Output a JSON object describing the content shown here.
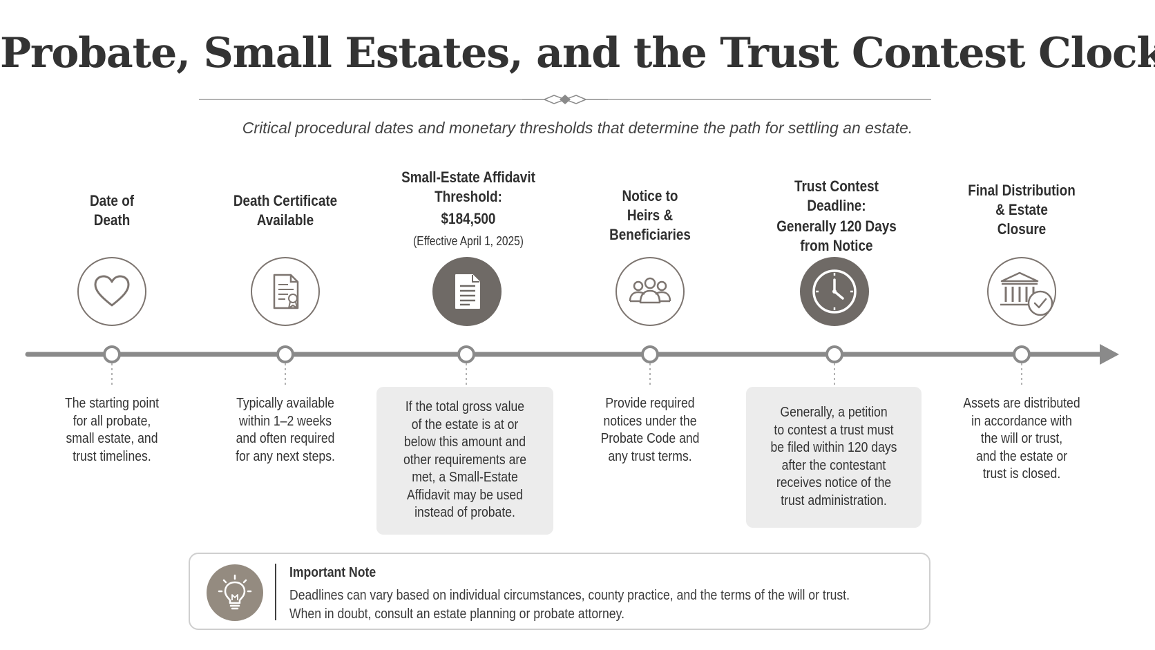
{
  "title": "Probate, Small Estates, and the Trust Contest Clock",
  "subtitle": "Critical procedural dates and monetary thresholds that determine the path for settling an estate.",
  "milestones": [
    {
      "label_lines": [
        "Date of",
        "Death"
      ],
      "label_sub": "",
      "icon": "heart-icon",
      "description_lines": [
        "The starting point",
        "for all probate,",
        "small estate, and",
        "trust timelines."
      ]
    },
    {
      "label_lines": [
        "Death Certificate",
        "Available"
      ],
      "label_sub": "",
      "icon": "certificate-document-icon",
      "description_lines": [
        "Typically available",
        "within 1–2 weeks",
        "and often required",
        "for any next steps."
      ]
    },
    {
      "label_lines": [
        "Small-Estate Affidavit",
        "Threshold:",
        "$184,500"
      ],
      "label_sub": "(Effective April 1, 2025)",
      "icon": "affidavit-document-icon",
      "description_lines": [
        "If the total gross value",
        "of the estate is at or",
        "below this amount and",
        "other requirements are",
        "met, a Small-Estate",
        "Affidavit may be used",
        "instead of probate."
      ]
    },
    {
      "label_lines": [
        "Notice to",
        "Heirs &",
        "Beneficiaries"
      ],
      "label_sub": "",
      "icon": "people-group-icon",
      "description_lines": [
        "Provide required",
        "notices under the",
        "Probate Code and",
        "any trust terms."
      ]
    },
    {
      "label_lines": [
        "Trust Contest",
        "Deadline:",
        "Generally 120 Days",
        "from Notice"
      ],
      "label_sub": "",
      "icon": "clock-icon",
      "description_lines": [
        "Generally, a petition",
        "to contest a trust must",
        "be filed within 120 days",
        "after the contestant",
        "receives notice of the",
        "trust administration."
      ]
    },
    {
      "label_lines": [
        "Final Distribution",
        "& Estate",
        "Closure"
      ],
      "label_sub": "",
      "icon": "bank-check-icon",
      "description_lines": [
        "Assets are distributed",
        "in accordance with",
        "the will or trust,",
        "and the estate or",
        "trust is closed."
      ]
    }
  ],
  "note": {
    "icon": "lightbulb-icon",
    "title": "Important Note",
    "lines": [
      "Deadlines can vary based on individual circumstances, county practice, and the terms of the will or trust.",
      "When in doubt, consult an estate planning or probate attorney."
    ]
  },
  "colors": {
    "timeline": "#8a8a8a",
    "icon_stroke": "#7d7570",
    "icon_fill": "#6f6a66",
    "box_bg": "#ececec",
    "note_icon_bg": "#948b80"
  }
}
